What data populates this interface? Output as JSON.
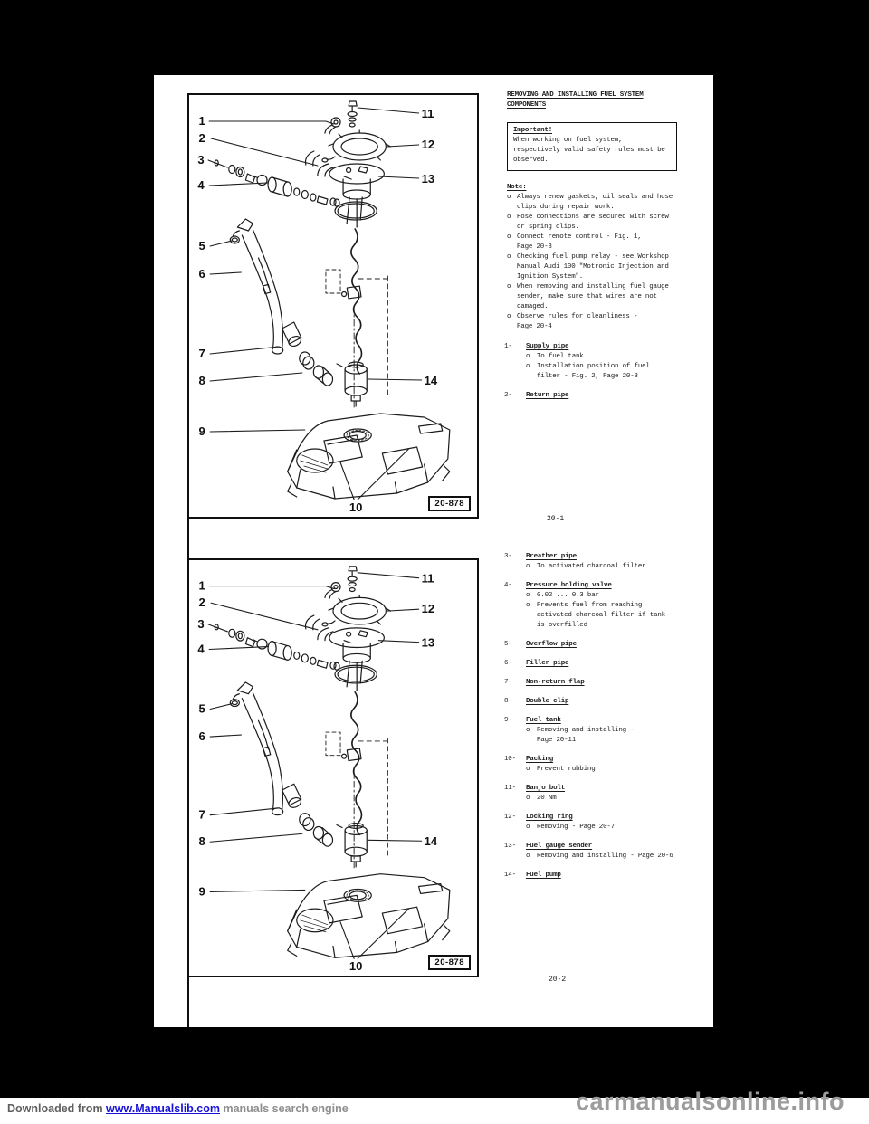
{
  "scan": {
    "background_color": "#000000",
    "paper_color": "#ffffff"
  },
  "manual": {
    "heading_lines": [
      "REMOVING AND INSTALLING FUEL SYSTEM",
      "COMPONENTS"
    ],
    "important_box": {
      "title": "Important!",
      "lines": "When working on fuel system,\nrespectively valid safety rules must be\nobserved."
    },
    "note": {
      "title": "Note:",
      "items": [
        "Always renew gaskets, oil seals and hose\nclips during repair work.",
        "Hose connections are secured with screw\nor spring clips.",
        "Connect remote control - Fig. 1,\nPage 20-3",
        "Checking fuel pump relay - see Workshop\nManual Audi 100 \"Motronic Injection and\nIgnition System\".",
        "When removing and installing fuel gauge\nsender, make sure that wires are not\ndamaged.",
        "Observe rules for cleanliness -\nPage 20-4"
      ]
    },
    "bullet_marker": "o",
    "items_page1": [
      {
        "num": "1-",
        "title": "Supply pipe",
        "subs": [
          "To fuel tank",
          "Installation position of fuel\nfilter - Fig. 2, Page 20-3"
        ]
      },
      {
        "num": "2-",
        "title": "Return pipe",
        "subs": []
      }
    ],
    "page1_number": "20-1",
    "items_page2": [
      {
        "num": "3-",
        "title": "Breather pipe",
        "subs": [
          "To activated charcoal filter"
        ]
      },
      {
        "num": "4-",
        "title": "Pressure holding valve",
        "subs": [
          "0.02 ... 0.3 bar",
          "Prevents fuel from reaching\nactivated charcoal filter if tank\nis overfilled"
        ]
      },
      {
        "num": "5-",
        "title": "Overflow pipe",
        "subs": []
      },
      {
        "num": "6-",
        "title": "Filler pipe",
        "subs": []
      },
      {
        "num": "7-",
        "title": "Non-return flap",
        "subs": []
      },
      {
        "num": "8-",
        "title": "Double clip",
        "subs": []
      },
      {
        "num": "9-",
        "title": "Fuel tank",
        "subs": [
          "Removing and installing -\nPage 20-11"
        ]
      },
      {
        "num": "10-",
        "title": "Packing",
        "subs": [
          "Prevent rubbing"
        ]
      },
      {
        "num": "11-",
        "title": "Banjo bolt",
        "subs": [
          "20 Nm"
        ]
      },
      {
        "num": "12-",
        "title": "Locking ring",
        "subs": [
          "Removing - Page 20-7"
        ]
      },
      {
        "num": "13-",
        "title": "Fuel gauge sender",
        "subs": [
          "Removing and installing - Page 20-6"
        ]
      },
      {
        "num": "14-",
        "title": "Fuel pump",
        "subs": []
      }
    ],
    "page2_number": "20-2",
    "diagram": {
      "fig_label": "20-878",
      "callouts": [
        "1",
        "2",
        "3",
        "4",
        "5",
        "6",
        "7",
        "8",
        "9",
        "10",
        "11",
        "12",
        "13",
        "14"
      ]
    }
  },
  "watermark": {
    "prefix": "Downloaded from ",
    "link": "www.Manualslib.com",
    "suffix": " manuals search engine",
    "site": "carmanualsonline.info",
    "colors": {
      "link": "#1612d8",
      "prefix": "#5f5f5f",
      "suffix": "#8e8e8e",
      "site": "#9c9c9c"
    }
  }
}
